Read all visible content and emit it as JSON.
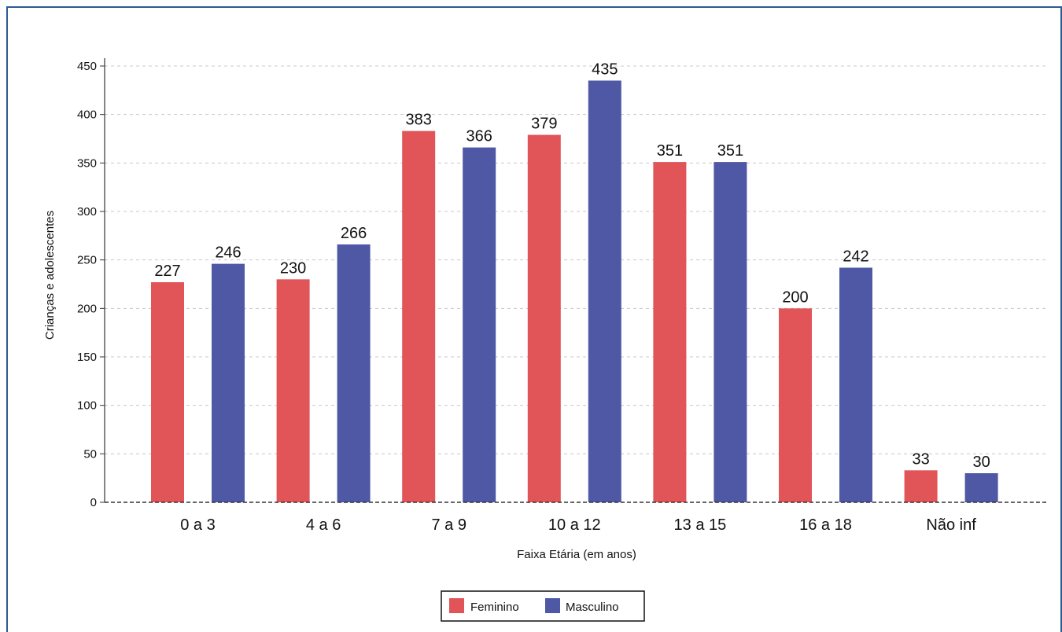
{
  "chart_data": {
    "type": "bar",
    "categories": [
      "0 a 3",
      "4 a 6",
      "7 a 9",
      "10 a 12",
      "13 a 15",
      "16 a 18",
      "Não inf"
    ],
    "series": [
      {
        "name": "Feminino",
        "values": [
          227,
          230,
          383,
          379,
          351,
          200,
          33
        ],
        "color": "#e15457"
      },
      {
        "name": "Masculino",
        "values": [
          246,
          266,
          366,
          435,
          351,
          242,
          30
        ],
        "color": "#4e58a4"
      }
    ],
    "title": "",
    "xlabel": "Faixa Etária (em anos)",
    "ylabel": "Crianças e adolescentes",
    "ylim": [
      0,
      450
    ],
    "yticks": [
      0,
      50,
      100,
      150,
      200,
      250,
      300,
      350,
      400,
      450
    ],
    "grid": true,
    "legend_position": "bottom-center"
  }
}
